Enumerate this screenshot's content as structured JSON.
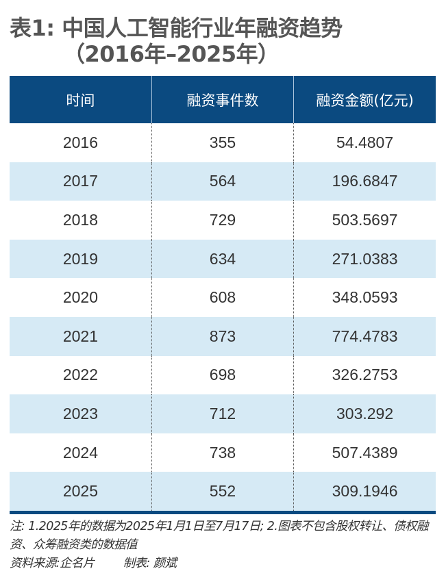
{
  "title": {
    "line1": "表1: 中国人工智能行业年融资趋势",
    "line2": "（2016年–2025年）"
  },
  "table": {
    "headers": [
      "时间",
      "融资事件数",
      "融资金额(亿元)"
    ],
    "rows": [
      [
        "2016",
        "355",
        "54.4807"
      ],
      [
        "2017",
        "564",
        "196.6847"
      ],
      [
        "2018",
        "729",
        "503.5697"
      ],
      [
        "2019",
        "634",
        "271.0383"
      ],
      [
        "2020",
        "608",
        "348.0593"
      ],
      [
        "2021",
        "873",
        "774.4783"
      ],
      [
        "2022",
        "698",
        "326.2753"
      ],
      [
        "2023",
        "712",
        "303.292"
      ],
      [
        "2024",
        "738",
        "507.4389"
      ],
      [
        "2025",
        "552",
        "309.1946"
      ]
    ]
  },
  "notes": {
    "note": "注: 1.2025年的数据为2025年1月1日至7月17日; 2.图表不包含股权转让、债权融资、众筹融资类的数据值",
    "source": "资料来源:企名片",
    "author": "制表: 颜斌"
  },
  "colors": {
    "header_bg": "#0b4a80",
    "stripe": "#d6eaf5",
    "title": "#555555"
  }
}
